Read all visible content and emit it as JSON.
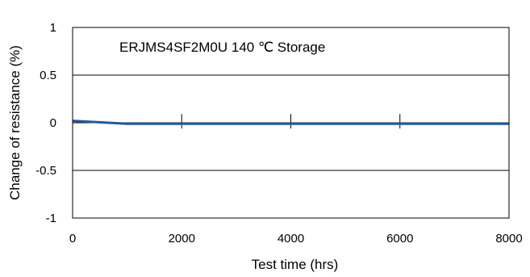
{
  "chart_data": {
    "type": "line",
    "title": "",
    "annotation": "ERJMS4SF2M0U 140 ℃ Storage",
    "xlabel": "Test time (hrs)",
    "ylabel": "Change of resistance (%)",
    "xlim": [
      0,
      8000
    ],
    "ylim": [
      -1,
      1
    ],
    "x_ticks": [
      0,
      2000,
      4000,
      6000,
      8000
    ],
    "x_tick_labels": [
      "0",
      "2000",
      "4000",
      "6000",
      "8000"
    ],
    "y_ticks": [
      1,
      0.5,
      0,
      -0.5,
      -1
    ],
    "y_tick_labels": [
      "1",
      "0.5",
      "0",
      "-0.5",
      "-1"
    ],
    "grid": "horizontal",
    "error_bar_x": [
      2000,
      4000,
      6000,
      8000
    ],
    "series": [
      {
        "x": [
          0,
          1000,
          2000,
          4000,
          6000,
          8000
        ],
        "y": [
          0.02,
          -0.01,
          -0.01,
          -0.01,
          -0.01,
          -0.01
        ],
        "color": "#1f5a9c"
      }
    ]
  }
}
